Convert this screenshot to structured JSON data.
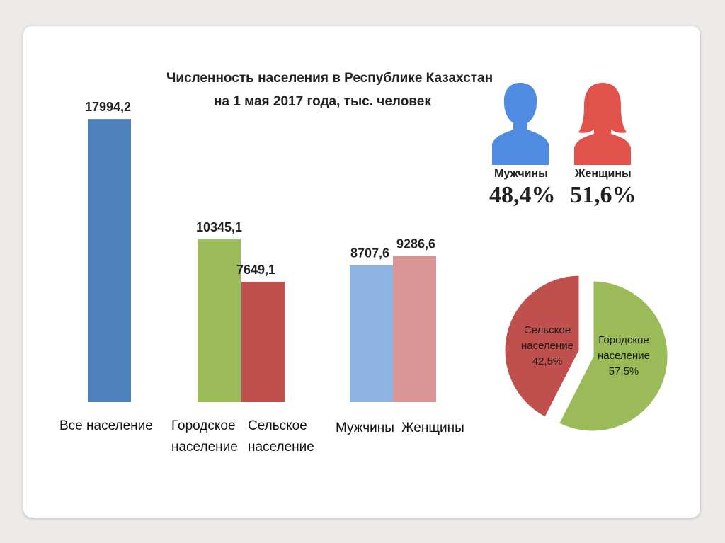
{
  "chart_data": [
    {
      "type": "bar",
      "title": "Численность населения в Республике Казахстан",
      "subtitle": "на 1 мая 2017 года, тыс. человек",
      "categories": [
        "Все население",
        "Городское население",
        "Сельское население",
        "Мужчины",
        "Женщины"
      ],
      "values": [
        17994.2,
        10345.1,
        7649.1,
        8707.6,
        9286.6
      ],
      "value_labels": [
        "17994,2",
        "10345,1",
        "7649,1",
        "8707,6",
        "9286,6"
      ],
      "colors": [
        "#4f81bd",
        "#9bbb59",
        "#c0504d",
        "#8db3e2",
        "#d99694"
      ],
      "category_labels": {
        "all": "Все население",
        "urban_1": "Городское",
        "urban_2": "население",
        "rural_1": "Сельское",
        "rural_2": "население",
        "men": "Мужчины",
        "women": "Женщины"
      },
      "ylim": [
        0,
        18000
      ],
      "grid": false
    },
    {
      "type": "pie",
      "categories": [
        "Сельское население",
        "Городское население"
      ],
      "values": [
        42.5,
        57.5
      ],
      "labels": [
        {
          "line1": "Сельское",
          "line2": "население",
          "pct": "42,5%"
        },
        {
          "line1": "Городское",
          "line2": "население",
          "pct": "57,5%"
        }
      ],
      "colors": [
        "#c0504d",
        "#9bbb59"
      ]
    }
  ],
  "gender": {
    "men_label": "Мужчины",
    "men_pct": "48,4%",
    "women_label": "Женщины",
    "women_pct": "51,6%",
    "men_color": "#4f8be0",
    "women_color": "#e0524a"
  }
}
